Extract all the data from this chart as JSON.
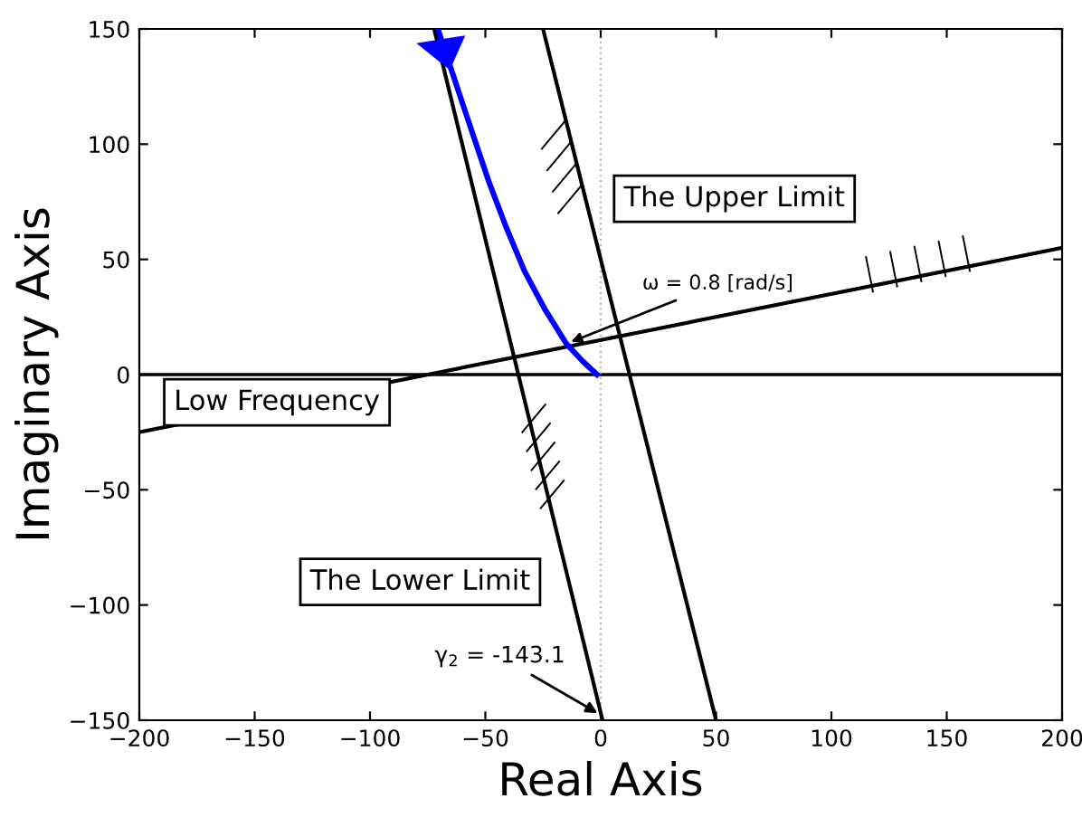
{
  "chart_data": {
    "type": "line",
    "xlabel": "Real Axis",
    "ylabel": "Imaginary Axis",
    "xlim": [
      -200,
      200
    ],
    "ylim": [
      -150,
      150
    ],
    "xticks": [
      {
        "value": -200,
        "label": "−200"
      },
      {
        "value": -150,
        "label": "−150"
      },
      {
        "value": -100,
        "label": "−100"
      },
      {
        "value": -50,
        "label": "−50"
      },
      0,
      50,
      100,
      150,
      200
    ],
    "yticks": [
      {
        "value": -150,
        "label": "−150"
      },
      {
        "value": -100,
        "label": "−100"
      },
      {
        "value": -50,
        "label": "−50"
      },
      0,
      50,
      100,
      150
    ],
    "grid": false,
    "legend": false,
    "marker": "none",
    "line_style": "solid",
    "series": [
      {
        "color": "#0000ff",
        "x": [
          -1.6,
          -8,
          -14.9,
          -24,
          -33,
          -41,
          -48.6,
          -54,
          -59,
          -70.6
        ],
        "values": [
          0,
          6,
          13.4,
          28,
          44.8,
          64,
          84,
          100,
          115,
          150
        ]
      },
      {
        "color": "#000000",
        "x": [
          -72.2,
          0.8
        ],
        "values": [
          150,
          -150
        ]
      },
      {
        "color": "#000000",
        "x": [
          -25,
          50
        ],
        "values": [
          150,
          -150
        ]
      },
      {
        "color": "#000000",
        "x": [
          -200,
          200
        ],
        "values": [
          -25,
          55
        ]
      }
    ],
    "ref_lines": [
      {
        "axis": "y",
        "value": 0,
        "color": "#000000",
        "line_style": "solid"
      },
      {
        "axis": "x",
        "value": 0,
        "color": "#bbbbbb",
        "line_style": "dotted"
      }
    ],
    "annotations": [
      {
        "text": "The Upper Limit"
      },
      {
        "text": "ω = 0.8 [rad/s]",
        "x": -14.9,
        "y": 13.4
      },
      {
        "text": "Low Frequency"
      },
      {
        "text": "The Lower Limit"
      },
      {
        "text": "γ$_{2}$ = -143.1",
        "x": 0.5,
        "y": -148
      }
    ]
  }
}
